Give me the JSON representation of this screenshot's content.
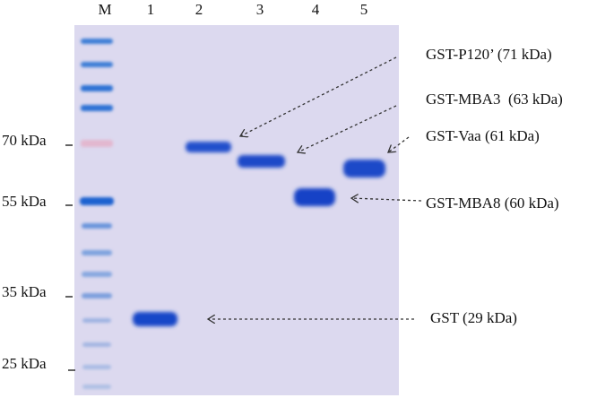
{
  "lanes": [
    "M",
    "1",
    "2",
    "3",
    "4",
    "5"
  ],
  "markers": [
    "70 kDa",
    "55 kDa",
    "35 kDa",
    "25 kDa"
  ],
  "annotations": [
    "GST-P120’ (71 kDa)",
    "GST-MBA3  (63 kDa)",
    "GST-Vaa (61 kDa)",
    "GST-MBA8 (60 kDa)",
    "GST (29 kDa)"
  ]
}
